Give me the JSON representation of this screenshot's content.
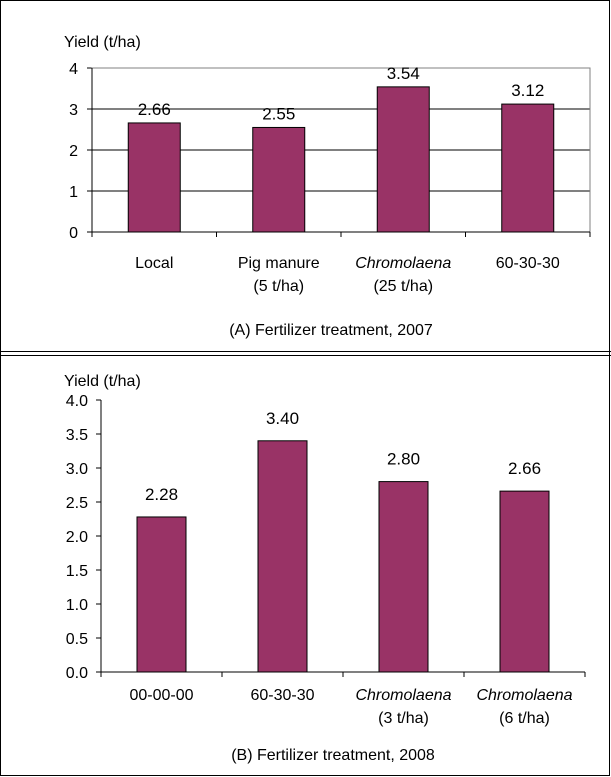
{
  "colors": {
    "bar": "#993366",
    "bar_stroke": "#000000",
    "frame": "#000000"
  },
  "chart_data": [
    {
      "type": "bar",
      "ylabel": "Yield (t/ha)",
      "xlabel": "(A) Fertilizer treatment, 2007",
      "ylim": [
        0,
        4
      ],
      "yticks": [
        "0",
        "1",
        "2",
        "3",
        "4"
      ],
      "grid": true,
      "categories": [
        {
          "line1": "Local",
          "line2": "",
          "italic": false
        },
        {
          "line1": "Pig manure",
          "line2": "(5 t/ha)",
          "italic": false
        },
        {
          "line1": "Chromolaena",
          "line2": "(25 t/ha)",
          "italic": true
        },
        {
          "line1": "60-30-30",
          "line2": "",
          "italic": false
        }
      ],
      "values": [
        2.66,
        2.55,
        3.54,
        3.12
      ],
      "labels": [
        "2.66",
        "2.55",
        "3.54",
        "3.12"
      ]
    },
    {
      "type": "bar",
      "ylabel": "Yield (t/ha)",
      "xlabel": "(B) Fertilizer treatment, 2008",
      "ylim": [
        0,
        4
      ],
      "yticks": [
        "0.0",
        "0.5",
        "1.0",
        "1.5",
        "2.0",
        "2.5",
        "3.0",
        "3.5",
        "4.0"
      ],
      "grid": false,
      "categories": [
        {
          "line1": "00-00-00",
          "line2": "",
          "italic": false
        },
        {
          "line1": "60-30-30",
          "line2": "",
          "italic": false
        },
        {
          "line1": "Chromolaena",
          "line2": "(3 t/ha)",
          "italic": true
        },
        {
          "line1": "Chromolaena",
          "line2": "(6 t/ha)",
          "italic": true
        }
      ],
      "values": [
        2.28,
        3.4,
        2.8,
        2.66
      ],
      "labels": [
        "2.28",
        "3.40",
        "2.80",
        "2.66"
      ]
    }
  ]
}
